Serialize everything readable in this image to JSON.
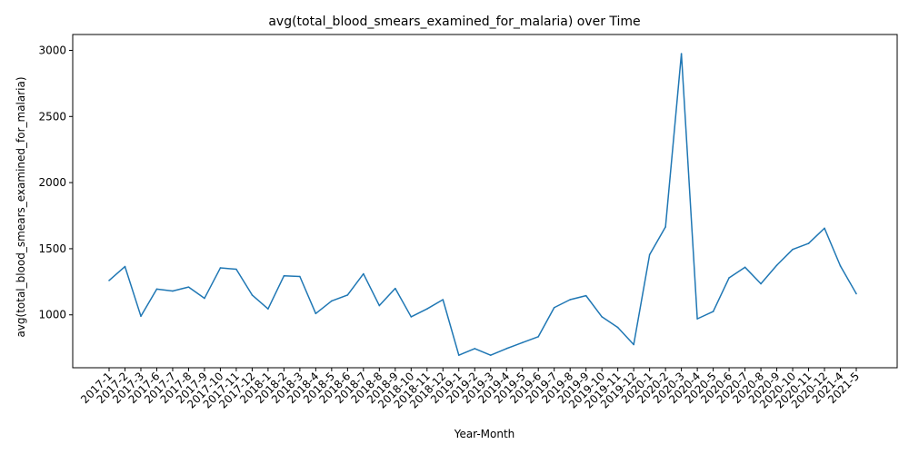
{
  "chart_data": {
    "type": "line",
    "title": "avg(total_blood_smears_examined_for_malaria) over Time",
    "xlabel": "Year-Month",
    "ylabel": "avg(total_blood_smears_examined_for_malaria)",
    "ylim": [
      600,
      3120
    ],
    "yticks": [
      1000,
      1500,
      2000,
      2500,
      3000
    ],
    "grid": false,
    "line_color": "#1f77b4",
    "categories": [
      "2017-1",
      "2017-2",
      "2017-3",
      "2017-6",
      "2017-7",
      "2017-8",
      "2017-9",
      "2017-10",
      "2017-11",
      "2017-12",
      "2018-1",
      "2018-2",
      "2018-3",
      "2018-4",
      "2018-5",
      "2018-6",
      "2018-7",
      "2018-8",
      "2018-9",
      "2018-10",
      "2018-11",
      "2018-12",
      "2019-1",
      "2019-2",
      "2019-3",
      "2019-4",
      "2019-5",
      "2019-6",
      "2019-7",
      "2019-8",
      "2019-9",
      "2019-10",
      "2019-11",
      "2019-12",
      "2020-1",
      "2020-2",
      "2020-3",
      "2020-4",
      "2020-5",
      "2020-6",
      "2020-7",
      "2020-8",
      "2020-9",
      "2020-10",
      "2020-11",
      "2020-12",
      "2021-4",
      "2021-5"
    ],
    "series": [
      {
        "values": [
          1260,
          1365,
          990,
          1195,
          1180,
          1210,
          1125,
          1355,
          1345,
          1150,
          1045,
          1295,
          1290,
          1010,
          1105,
          1150,
          1310,
          1070,
          1200,
          985,
          1045,
          1115,
          695,
          745,
          695,
          745,
          790,
          835,
          1055,
          1115,
          1145,
          985,
          905,
          775,
          1455,
          1665,
          2975,
          970,
          1025,
          1280,
          1360,
          1235,
          1375,
          1495,
          1540,
          1655,
          1370,
          1160
        ]
      }
    ]
  }
}
